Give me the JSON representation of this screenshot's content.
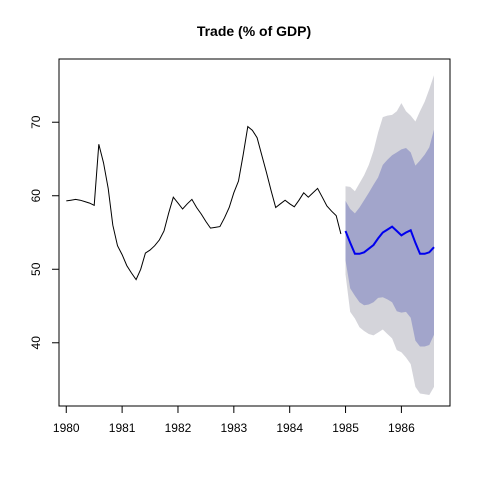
{
  "chart_data": {
    "type": "line",
    "title": "Trade (% of GDP)",
    "xlabel": "",
    "ylabel": "",
    "xlim": [
      1979.87,
      1986.87
    ],
    "ylim": [
      31.4,
      78.6
    ],
    "x_ticks": [
      1980,
      1981,
      1982,
      1983,
      1984,
      1985,
      1986
    ],
    "x_tick_labels": [
      "1980",
      "1981",
      "1982",
      "1983",
      "1984",
      "1985",
      "1986"
    ],
    "y_ticks": [
      40,
      50,
      60,
      70
    ],
    "y_tick_labels": [
      "40",
      "50",
      "60",
      "70"
    ],
    "grid": false,
    "colors": {
      "observed": "#000000",
      "forecast": "#0000ee",
      "band95": "#d4d4da",
      "band80": "#a2a5cb"
    },
    "series": [
      {
        "x": [
          1980.0,
          1980.083,
          1980.167,
          1980.25,
          1980.333,
          1980.417,
          1980.5,
          1980.583,
          1980.667,
          1980.75,
          1980.833,
          1980.917,
          1981.0,
          1981.083,
          1981.167,
          1981.25,
          1981.333,
          1981.417,
          1981.5,
          1981.583,
          1981.667,
          1981.75,
          1981.833,
          1981.917,
          1982.0,
          1982.083,
          1982.167,
          1982.25,
          1982.333,
          1982.417,
          1982.5,
          1982.583,
          1982.667,
          1982.75,
          1982.833,
          1982.917,
          1983.0,
          1983.083,
          1983.167,
          1983.25,
          1983.333,
          1983.417,
          1983.5,
          1983.583,
          1983.667,
          1983.75,
          1983.833,
          1983.917,
          1984.0,
          1984.083,
          1984.167,
          1984.25,
          1984.333,
          1984.417,
          1984.5,
          1984.583,
          1984.667,
          1984.75,
          1984.833,
          1984.917
        ],
        "values": [
          59.3,
          59.4,
          59.5,
          59.4,
          59.2,
          59.0,
          58.7,
          67.0,
          64.5,
          61.0,
          56.0,
          53.2,
          52.0,
          50.5,
          49.5,
          48.6,
          50.0,
          52.2,
          52.6,
          53.2,
          54.0,
          55.2,
          57.6,
          59.8,
          59.0,
          58.2,
          58.9,
          59.5,
          58.4,
          57.5,
          56.5,
          55.6,
          55.7,
          55.8,
          57.0,
          58.4,
          60.4,
          62.0,
          65.6,
          69.4,
          68.9,
          67.9,
          65.5,
          63.2,
          60.7,
          58.4,
          58.9,
          59.4,
          58.9,
          58.5,
          59.4,
          60.4,
          59.8,
          59.2,
          62.6,
          65.8,
          60.8,
          56.3,
          57.8,
          59.4
        ]
      }
    ],
    "observed_tail": {
      "x": [
        1984.417,
        1984.5,
        1984.583,
        1984.667,
        1984.75,
        1984.833,
        1984.917
      ],
      "values": [
        60.4,
        61.0,
        59.8,
        58.6,
        57.9,
        57.3,
        54.8
      ]
    },
    "forecast": {
      "x": [
        1985.0,
        1985.083,
        1985.167,
        1985.25,
        1985.333,
        1985.417,
        1985.5,
        1985.583,
        1985.667,
        1985.75,
        1985.833,
        1985.917,
        1986.0,
        1986.083,
        1986.167,
        1986.25,
        1986.333,
        1986.417,
        1986.5,
        1986.583
      ],
      "mean": [
        55.2,
        53.6,
        52.1,
        52.1,
        52.3,
        52.8,
        53.3,
        54.2,
        55.0,
        55.4,
        55.8,
        55.2,
        54.6,
        55.0,
        55.3,
        53.6,
        52.1,
        52.1,
        52.3,
        53.0
      ],
      "lo80": [
        51.2,
        47.4,
        46.4,
        45.5,
        45.1,
        45.2,
        45.5,
        46.1,
        46.2,
        45.9,
        45.5,
        44.3,
        44.1,
        44.2,
        43.4,
        40.3,
        39.5,
        39.5,
        39.7,
        41.1
      ],
      "hi80": [
        59.3,
        58.2,
        57.6,
        58.4,
        59.4,
        60.4,
        61.5,
        62.5,
        64.2,
        64.9,
        65.5,
        65.9,
        66.3,
        66.5,
        65.9,
        64.1,
        64.8,
        65.6,
        66.6,
        69.0
      ],
      "lo95": [
        49.3,
        44.2,
        43.3,
        42.1,
        41.6,
        41.2,
        41.0,
        41.4,
        41.8,
        41.2,
        40.6,
        39.0,
        38.7,
        38.0,
        37.1,
        34.0,
        33.1,
        33.0,
        32.9,
        34.0
      ],
      "hi95": [
        61.3,
        61.2,
        60.6,
        61.7,
        62.8,
        64.2,
        66.1,
        68.6,
        70.7,
        70.9,
        71.0,
        71.5,
        72.6,
        71.5,
        70.9,
        70.1,
        71.5,
        72.8,
        74.5,
        76.4
      ]
    }
  }
}
